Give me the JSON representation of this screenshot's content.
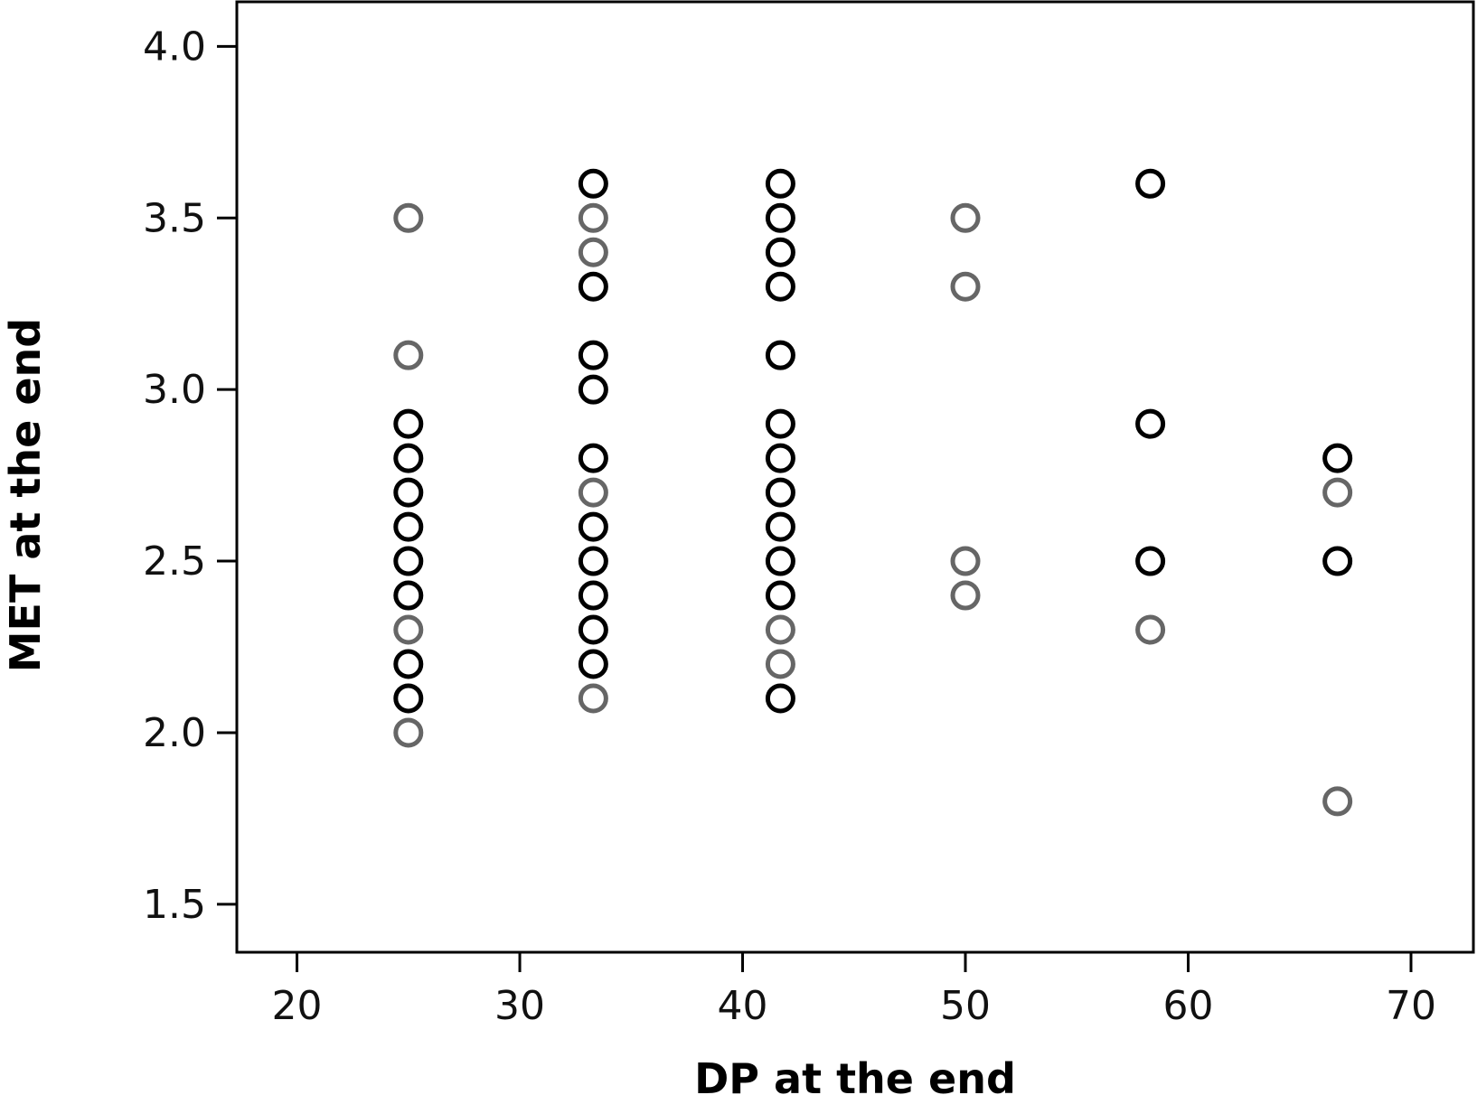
{
  "chart_data": {
    "type": "scatter",
    "xlabel": "DP at the end",
    "ylabel": "MET at the end",
    "xlim": [
      17.3,
      72.8
    ],
    "ylim": [
      1.36,
      4.13
    ],
    "xticks": [
      20,
      30,
      40,
      50,
      60,
      70
    ],
    "yticks": [
      1.5,
      2.0,
      2.5,
      3.0,
      3.5,
      4.0
    ],
    "xtick_labels": [
      "20",
      "30",
      "40",
      "50",
      "60",
      "70"
    ],
    "ytick_labels": [
      "1.5",
      "2.0",
      "2.5",
      "3.0",
      "3.5",
      "4.0"
    ],
    "grid": false,
    "legend": "none",
    "colors": {
      "dark": "#000000",
      "gray": "#666666"
    },
    "points": [
      {
        "x": 25,
        "y": 3.5,
        "c": "gray"
      },
      {
        "x": 25,
        "y": 3.1,
        "c": "gray"
      },
      {
        "x": 25,
        "y": 2.9,
        "c": "dark"
      },
      {
        "x": 25,
        "y": 2.8,
        "c": "dark"
      },
      {
        "x": 25,
        "y": 2.7,
        "c": "dark"
      },
      {
        "x": 25,
        "y": 2.6,
        "c": "dark"
      },
      {
        "x": 25,
        "y": 2.5,
        "c": "dark"
      },
      {
        "x": 25,
        "y": 2.4,
        "c": "dark"
      },
      {
        "x": 25,
        "y": 2.3,
        "c": "gray"
      },
      {
        "x": 25,
        "y": 2.2,
        "c": "dark"
      },
      {
        "x": 25,
        "y": 2.1,
        "c": "dark"
      },
      {
        "x": 25,
        "y": 2.0,
        "c": "gray"
      },
      {
        "x": 33.3,
        "y": 3.6,
        "c": "dark"
      },
      {
        "x": 33.3,
        "y": 3.5,
        "c": "gray"
      },
      {
        "x": 33.3,
        "y": 3.4,
        "c": "gray"
      },
      {
        "x": 33.3,
        "y": 3.3,
        "c": "dark"
      },
      {
        "x": 33.3,
        "y": 3.1,
        "c": "dark"
      },
      {
        "x": 33.3,
        "y": 3.0,
        "c": "dark"
      },
      {
        "x": 33.3,
        "y": 2.8,
        "c": "dark"
      },
      {
        "x": 33.3,
        "y": 2.7,
        "c": "gray"
      },
      {
        "x": 33.3,
        "y": 2.6,
        "c": "dark"
      },
      {
        "x": 33.3,
        "y": 2.5,
        "c": "dark"
      },
      {
        "x": 33.3,
        "y": 2.4,
        "c": "dark"
      },
      {
        "x": 33.3,
        "y": 2.3,
        "c": "dark"
      },
      {
        "x": 33.3,
        "y": 2.2,
        "c": "dark"
      },
      {
        "x": 33.3,
        "y": 2.1,
        "c": "gray"
      },
      {
        "x": 41.7,
        "y": 3.6,
        "c": "dark"
      },
      {
        "x": 41.7,
        "y": 3.5,
        "c": "dark"
      },
      {
        "x": 41.7,
        "y": 3.4,
        "c": "dark"
      },
      {
        "x": 41.7,
        "y": 3.3,
        "c": "dark"
      },
      {
        "x": 41.7,
        "y": 3.1,
        "c": "dark"
      },
      {
        "x": 41.7,
        "y": 2.9,
        "c": "dark"
      },
      {
        "x": 41.7,
        "y": 2.8,
        "c": "dark"
      },
      {
        "x": 41.7,
        "y": 2.7,
        "c": "dark"
      },
      {
        "x": 41.7,
        "y": 2.6,
        "c": "dark"
      },
      {
        "x": 41.7,
        "y": 2.5,
        "c": "dark"
      },
      {
        "x": 41.7,
        "y": 2.4,
        "c": "dark"
      },
      {
        "x": 41.7,
        "y": 2.3,
        "c": "gray"
      },
      {
        "x": 41.7,
        "y": 2.2,
        "c": "gray"
      },
      {
        "x": 41.7,
        "y": 2.1,
        "c": "dark"
      },
      {
        "x": 50,
        "y": 3.5,
        "c": "gray"
      },
      {
        "x": 50,
        "y": 3.3,
        "c": "gray"
      },
      {
        "x": 50,
        "y": 2.5,
        "c": "gray"
      },
      {
        "x": 50,
        "y": 2.4,
        "c": "gray"
      },
      {
        "x": 58.3,
        "y": 3.6,
        "c": "dark"
      },
      {
        "x": 58.3,
        "y": 2.9,
        "c": "dark"
      },
      {
        "x": 58.3,
        "y": 2.5,
        "c": "dark"
      },
      {
        "x": 58.3,
        "y": 2.3,
        "c": "gray"
      },
      {
        "x": 66.7,
        "y": 2.8,
        "c": "dark"
      },
      {
        "x": 66.7,
        "y": 2.7,
        "c": "gray"
      },
      {
        "x": 66.7,
        "y": 2.5,
        "c": "dark"
      },
      {
        "x": 66.7,
        "y": 1.8,
        "c": "gray"
      }
    ]
  }
}
